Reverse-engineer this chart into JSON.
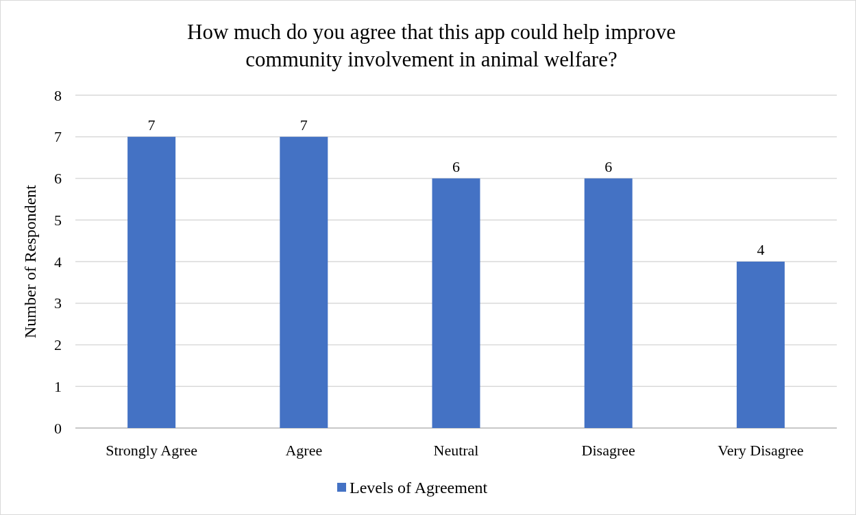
{
  "chart_data": {
    "type": "bar",
    "title": "How much do you agree that this app could help improve community involvement in animal welfare?",
    "ylabel": "Number of Respondent",
    "categories": [
      "Strongly Agree",
      "Agree",
      "Neutral",
      "Disagree",
      "Very Disagree"
    ],
    "series": [
      {
        "name": "Levels of Agreement",
        "color": "#4472c4",
        "values": [
          7,
          7,
          6,
          6,
          4
        ]
      }
    ],
    "ylim": [
      0,
      8
    ],
    "yticks": [
      0,
      1,
      2,
      3,
      4,
      5,
      6,
      7,
      8
    ],
    "grid": "y",
    "legend": "bottom",
    "data_labels": true
  }
}
